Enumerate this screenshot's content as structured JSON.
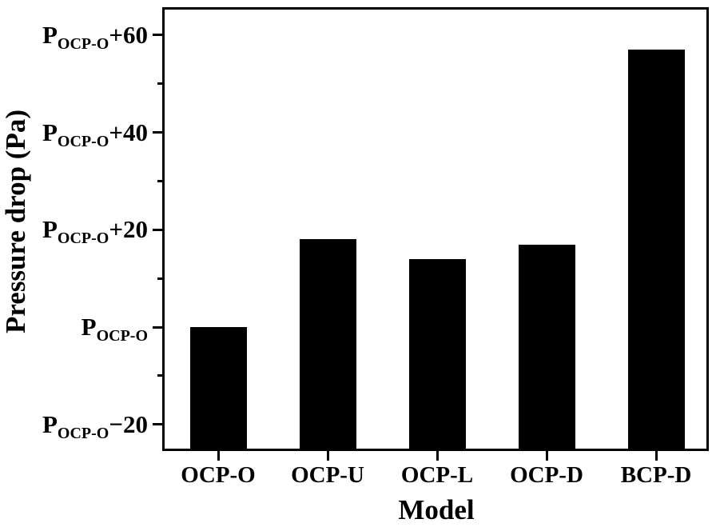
{
  "chart_data": {
    "type": "bar",
    "title": "",
    "xlabel": "Model",
    "ylabel": "Pressure drop (Pa)",
    "categories": [
      "OCP-O",
      "OCP-U",
      "OCP-L",
      "OCP-D",
      "BCP-D"
    ],
    "values": [
      0,
      18,
      14,
      17,
      57
    ],
    "values_unit": "Pa relative to P_OCP-O baseline",
    "bar_color": "#000000",
    "background_color": "#ffffff",
    "grid": false,
    "legend": false,
    "ylim": [
      -25,
      66
    ],
    "yticks": [
      {
        "value": 60,
        "base": "P",
        "sub": "OCP-O",
        "suffix": "+60"
      },
      {
        "value": 40,
        "base": "P",
        "sub": "OCP-O",
        "suffix": "+40"
      },
      {
        "value": 20,
        "base": "P",
        "sub": "OCP-O",
        "suffix": "+20"
      },
      {
        "value": 0,
        "base": "P",
        "sub": "OCP-O",
        "suffix": ""
      },
      {
        "value": -20,
        "base": "P",
        "sub": "OCP-O",
        "suffix": "−20"
      }
    ],
    "minor_yticks": [
      50,
      30,
      10,
      -10
    ]
  }
}
